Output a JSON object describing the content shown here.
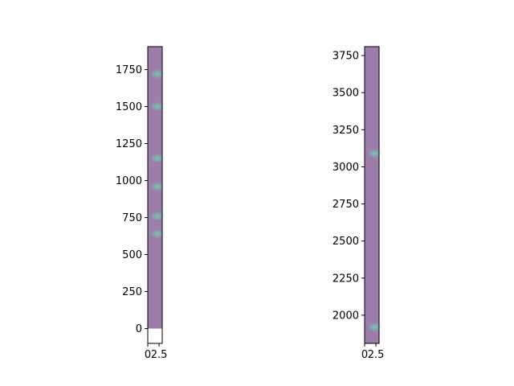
{
  "colors": {
    "strip_fill": "#9c7dab",
    "hotspot": "#6fd3b0",
    "axis": "#000000",
    "background": "#ffffff"
  },
  "chart_data": [
    {
      "type": "heatmap",
      "title": "",
      "xlabel": "",
      "ylabel": "",
      "xlim": [
        0,
        3.2
      ],
      "ylim": [
        -100,
        1905
      ],
      "data_extent_y": [
        0,
        1905
      ],
      "x_ticks": [
        {
          "value": 0,
          "label": "0"
        },
        {
          "value": 2.5,
          "label": "2.5"
        }
      ],
      "y_ticks": [
        {
          "value": 0,
          "label": "0"
        },
        {
          "value": 250,
          "label": "250"
        },
        {
          "value": 500,
          "label": "500"
        },
        {
          "value": 750,
          "label": "750"
        },
        {
          "value": 1000,
          "label": "1000"
        },
        {
          "value": 1250,
          "label": "1250"
        },
        {
          "value": 1500,
          "label": "1500"
        },
        {
          "value": 1750,
          "label": "1750"
        }
      ],
      "hotspots_y": [
        640,
        760,
        960,
        1150,
        1500,
        1720
      ]
    },
    {
      "type": "heatmap",
      "title": "",
      "xlabel": "",
      "ylabel": "",
      "xlim": [
        0,
        3.2
      ],
      "ylim": [
        1810,
        3810
      ],
      "data_extent_y": [
        1810,
        3810
      ],
      "x_ticks": [
        {
          "value": 0,
          "label": "0"
        },
        {
          "value": 2.5,
          "label": "2.5"
        }
      ],
      "y_ticks": [
        {
          "value": 2000,
          "label": "2000"
        },
        {
          "value": 2250,
          "label": "2250"
        },
        {
          "value": 2500,
          "label": "2500"
        },
        {
          "value": 2750,
          "label": "2750"
        },
        {
          "value": 3000,
          "label": "3000"
        },
        {
          "value": 3250,
          "label": "3250"
        },
        {
          "value": 3500,
          "label": "3500"
        },
        {
          "value": 3750,
          "label": "3750"
        }
      ],
      "hotspots_y": [
        1920,
        3090
      ]
    }
  ]
}
